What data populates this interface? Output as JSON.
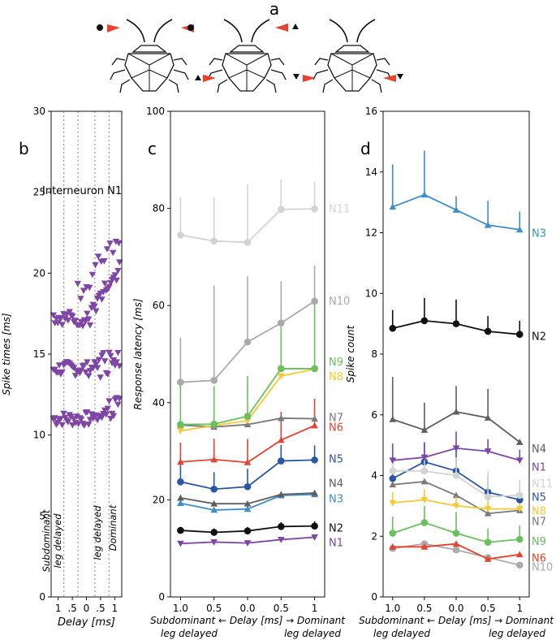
{
  "panel_a": {
    "label": "a"
  },
  "chart_data": [
    {
      "id": "b",
      "panel_label": "b",
      "type": "scatter",
      "title": "Interneuron N1",
      "xlabel": "Delay [ms]",
      "ylabel": "Spike times [ms]",
      "xticks": [
        "1",
        ".5",
        "0",
        ".5",
        "1"
      ],
      "xtick_values": [
        -1,
        -0.5,
        0,
        0.5,
        1
      ],
      "xlim": [
        -1.25,
        1.25
      ],
      "ylim": [
        0,
        30
      ],
      "yticks": [
        0,
        5,
        10,
        15,
        20,
        25,
        30
      ],
      "vlines": [
        -0.8,
        -0.3,
        0.3,
        0.8
      ],
      "annotations": [
        "Subdominant leg delayed",
        "leg delayed",
        "Dominant"
      ],
      "marker_color": "#7e45a6",
      "marker": "down-triangle",
      "clusters": [
        {
          "name": "first spikes",
          "y_start": 11.0,
          "y_end": 11.0,
          "late_rise": 1.0
        },
        {
          "name": "second spikes",
          "y_start": 14.1,
          "y_end": 14.1,
          "late_rise": 1.0
        },
        {
          "name": "third spikes",
          "y_start": 17.3,
          "y_end": 17.0,
          "late_rise": 3.5
        }
      ]
    },
    {
      "id": "c",
      "panel_label": "c",
      "type": "line",
      "xlabel": "Delay [ms]",
      "xlabel_left": "Subdominant",
      "xlabel_right": "Dominant",
      "xlabel_left2": "leg delayed",
      "xlabel_right2": "leg delayed",
      "ylabel": "Response latency [ms]",
      "x": [
        -1,
        -0.5,
        0,
        0.5,
        1
      ],
      "xticks": [
        "1.0",
        "0.5",
        "0.0",
        "0.5",
        "1"
      ],
      "xlim": [
        -1.15,
        1.15
      ],
      "ylim": [
        0,
        100
      ],
      "yticks": [
        0,
        20,
        40,
        60,
        80,
        100
      ],
      "series": [
        {
          "name": "N11",
          "color": "#d3d3d3",
          "marker": "circle",
          "values": [
            74.5,
            73.3,
            73.0,
            79.8,
            79.9
          ],
          "err": [
            7.8,
            9.0,
            11.9,
            6.2,
            5.6
          ],
          "label_y": 80
        },
        {
          "name": "N10",
          "color": "#aaaaaa",
          "marker": "circle",
          "values": [
            44.2,
            44.6,
            52.5,
            56.4,
            60.9
          ],
          "err": [
            9.2,
            19.5,
            13.5,
            8.6,
            7.3
          ],
          "label_y": 61
        },
        {
          "name": "N9",
          "color": "#6abf5e",
          "marker": "circle",
          "values": [
            35.5,
            35.6,
            37.2,
            47.0,
            47.0
          ],
          "err": [
            8.5,
            7.8,
            8.3,
            12.5,
            14.5
          ],
          "label_y": 48.5
        },
        {
          "name": "N8",
          "color": "#f5c932",
          "marker": "down-triangle",
          "values": [
            34.2,
            35.3,
            36.3,
            45.5,
            46.9
          ],
          "err": [
            0,
            0,
            0,
            0,
            0
          ],
          "label_y": 45.5
        },
        {
          "name": "N7",
          "color": "#7a7a7a",
          "marker": "triangle",
          "values": [
            35.4,
            35.0,
            35.5,
            36.8,
            36.7
          ],
          "err": [
            0,
            0,
            0,
            0,
            0
          ],
          "label_y": 37
        },
        {
          "name": "N6",
          "color": "#e8412d",
          "marker": "triangle",
          "values": [
            27.8,
            28.3,
            27.7,
            32.3,
            35.3
          ],
          "err": [
            4.0,
            4.3,
            4.8,
            5.8,
            5.5
          ],
          "label_y": 35
        },
        {
          "name": "N5",
          "color": "#2a56a5",
          "marker": "circle",
          "values": [
            23.7,
            22.2,
            22.7,
            28.0,
            28.2
          ],
          "err": [
            3.8,
            3.5,
            3.7,
            3.3,
            3.0
          ],
          "label_y": 28.5
        },
        {
          "name": "N4",
          "color": "#5e5e5e",
          "marker": "triangle",
          "values": [
            20.4,
            19.2,
            19.2,
            21.1,
            21.4
          ],
          "err": [
            0,
            0,
            0,
            0,
            0
          ],
          "label_y": 23.5
        },
        {
          "name": "N3",
          "color": "#3b8fcc",
          "marker": "triangle",
          "values": [
            19.3,
            17.9,
            18.1,
            20.9,
            21.1
          ],
          "err": [
            0,
            0,
            0,
            0,
            0
          ],
          "label_y": 20.3
        },
        {
          "name": "N2",
          "color": "#111111",
          "marker": "circle",
          "values": [
            13.7,
            13.3,
            13.6,
            14.5,
            14.6
          ],
          "err": [
            0.7,
            0.8,
            0.8,
            0.9,
            1.0
          ],
          "label_y": 14.3
        },
        {
          "name": "N1",
          "color": "#7e45a6",
          "marker": "down-triangle",
          "values": [
            11.0,
            11.3,
            11.1,
            11.8,
            12.3
          ],
          "err": [
            0,
            0,
            0,
            0,
            0
          ],
          "label_y": 11.3
        }
      ]
    },
    {
      "id": "d",
      "panel_label": "d",
      "type": "line",
      "xlabel": "Delay [ms]",
      "xlabel_left": "Subdominant",
      "xlabel_right": "Dominant",
      "xlabel_left2": "leg delayed",
      "xlabel_right2": "leg delayed",
      "ylabel": "Spike count",
      "x": [
        -1,
        -0.5,
        0,
        0.5,
        1
      ],
      "xticks": [
        "1.0",
        "0.5",
        "0.0",
        "0.5",
        "1"
      ],
      "xlim": [
        -1.15,
        1.15
      ],
      "ylim": [
        0,
        16
      ],
      "yticks": [
        0,
        2,
        4,
        6,
        8,
        10,
        12,
        14,
        16
      ],
      "series": [
        {
          "name": "N3",
          "color": "#3b8fcc",
          "marker": "triangle",
          "values": [
            12.85,
            13.25,
            12.75,
            12.25,
            12.1
          ],
          "err": [
            1.4,
            1.45,
            0.45,
            0.8,
            0.6
          ],
          "label_y": 12.0
        },
        {
          "name": "N2",
          "color": "#111111",
          "marker": "circle",
          "values": [
            8.85,
            9.1,
            9.0,
            8.75,
            8.65
          ],
          "err": [
            0.6,
            0.75,
            0.8,
            0.5,
            0.45
          ],
          "label_y": 8.6
        },
        {
          "name": "N4",
          "color": "#5e5e5e",
          "marker": "triangle",
          "values": [
            5.85,
            5.5,
            6.1,
            5.9,
            5.1
          ],
          "err": [
            1.4,
            0.9,
            0.85,
            0.95,
            0.0
          ],
          "label_y": 4.9
        },
        {
          "name": "N1",
          "color": "#7e45a6",
          "marker": "down-triangle",
          "values": [
            4.5,
            4.6,
            4.9,
            4.8,
            4.5
          ],
          "err": [
            0.55,
            0.5,
            0.55,
            0.4,
            0.35
          ],
          "label_y": 4.3
        },
        {
          "name": "N11",
          "color": "#d3d3d3",
          "marker": "circle",
          "values": [
            4.15,
            4.15,
            4.0,
            3.3,
            3.35
          ],
          "err": [
            0.5,
            0.5,
            0.6,
            0.85,
            0.5
          ],
          "label_y": 3.75
        },
        {
          "name": "N5",
          "color": "#2a56a5",
          "marker": "circle",
          "values": [
            3.9,
            4.45,
            4.15,
            3.45,
            3.2
          ],
          "err": [
            0.5,
            0.6,
            0.7,
            0.5,
            0.4
          ],
          "label_y": 3.3
        },
        {
          "name": "N8",
          "color": "#f5c932",
          "marker": "down-triangle",
          "values": [
            3.1,
            3.2,
            3.0,
            2.9,
            2.9
          ],
          "err": [
            0.35,
            0.35,
            0.3,
            0.3,
            0.3
          ],
          "label_y": 2.85
        },
        {
          "name": "N7",
          "color": "#7a7a7a",
          "marker": "triangle",
          "values": [
            3.7,
            3.8,
            3.35,
            2.75,
            2.85
          ],
          "err": [
            0,
            0,
            0,
            0,
            0
          ],
          "label_y": 2.5
        },
        {
          "name": "N9",
          "color": "#6abf5e",
          "marker": "circle",
          "values": [
            2.1,
            2.45,
            2.1,
            1.8,
            1.9
          ],
          "err": [
            0.55,
            0.55,
            0.7,
            0.45,
            0.45
          ],
          "label_y": 1.85
        },
        {
          "name": "N6",
          "color": "#e8412d",
          "marker": "triangle",
          "values": [
            1.65,
            1.65,
            1.75,
            1.25,
            1.4
          ],
          "err": [
            0,
            0,
            0,
            0,
            0
          ],
          "label_y": 1.3
        },
        {
          "name": "N10",
          "color": "#aaaaaa",
          "marker": "circle",
          "values": [
            1.6,
            1.75,
            1.55,
            1.3,
            1.05
          ],
          "err": [
            0,
            0,
            0,
            0,
            0
          ],
          "label_y": 1.0
        }
      ]
    }
  ]
}
